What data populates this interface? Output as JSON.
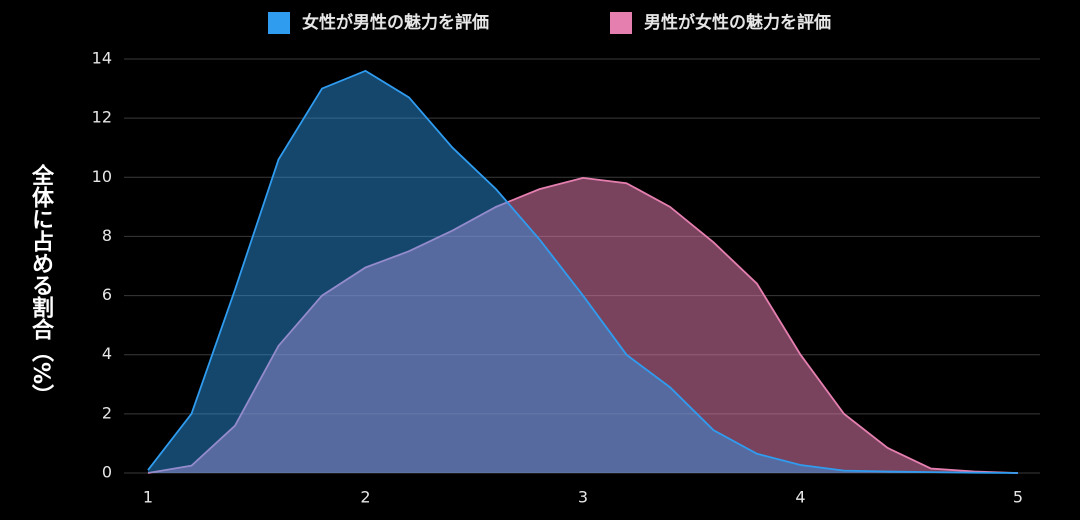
{
  "chart_data": {
    "type": "area",
    "y_label": "全体に占める割合（%）",
    "x": [
      1,
      1.2,
      1.4,
      1.6,
      1.8,
      2,
      2.2,
      2.4,
      2.6,
      2.8,
      3,
      3.2,
      3.4,
      3.6,
      3.8,
      4,
      4.2,
      4.4,
      4.6,
      4.8,
      5
    ],
    "series": [
      {
        "name": "女性が男性の魅力を評価",
        "color": "#2f9cf0",
        "values": [
          0.1,
          2,
          6.2,
          10.6,
          13,
          13.6,
          12.7,
          11,
          9.6,
          7.9,
          6,
          4,
          2.9,
          1.45,
          0.65,
          0.27,
          0.08,
          0.05,
          0.03,
          0.01,
          0
        ]
      },
      {
        "name": "男性が女性の魅力を評価",
        "color": "#e57fb0",
        "values": [
          0,
          0.25,
          1.6,
          4.3,
          6,
          6.95,
          7.5,
          8.2,
          9,
          9.6,
          9.98,
          9.8,
          9,
          7.8,
          6.4,
          4,
          2,
          0.85,
          0.15,
          0.05,
          0
        ]
      }
    ],
    "xlim": [
      1,
      5
    ],
    "xticks": [
      1,
      2,
      3,
      4,
      5
    ],
    "ylim": [
      0,
      14
    ],
    "yticks": [
      0,
      2,
      4,
      6,
      8,
      10,
      12,
      14
    ],
    "grid": true
  }
}
